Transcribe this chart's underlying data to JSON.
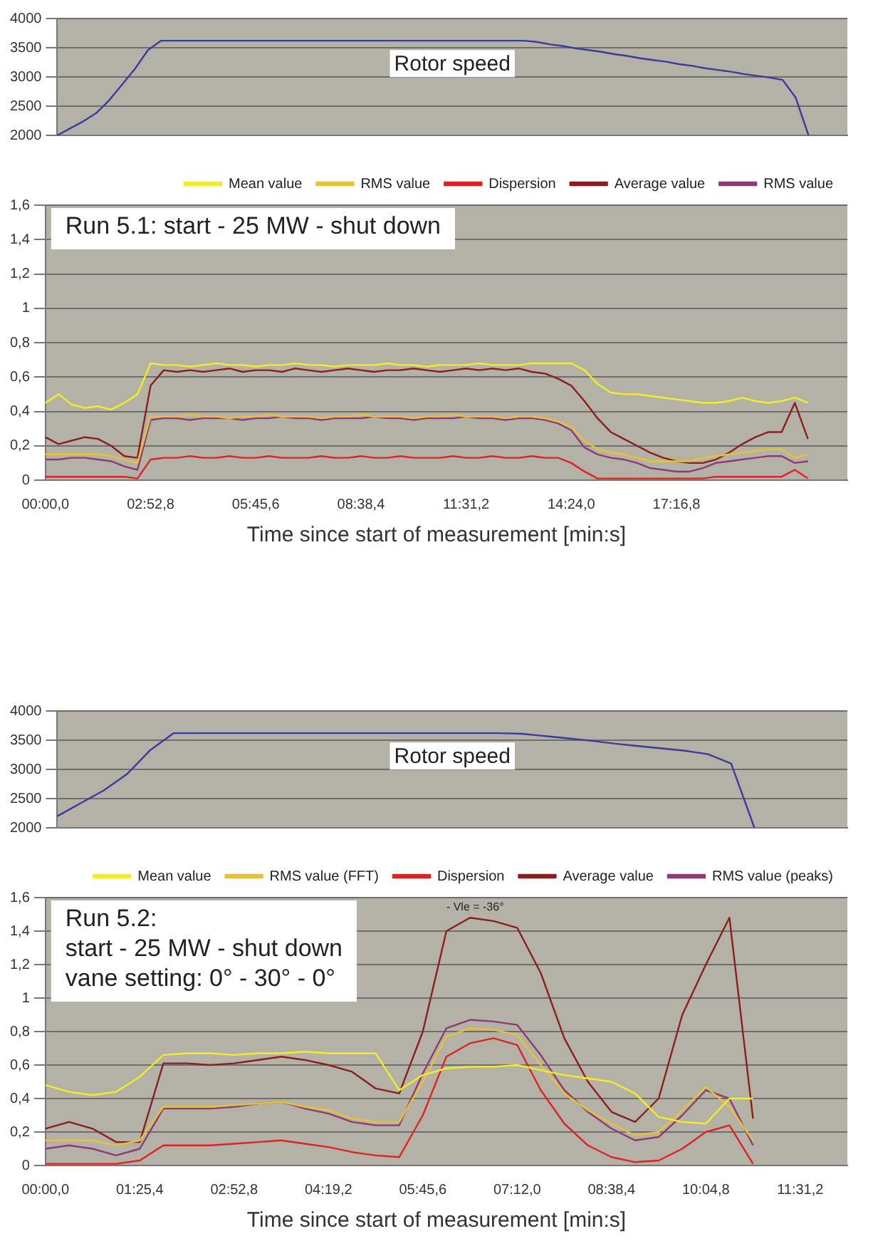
{
  "chart_data": [
    {
      "type": "line",
      "categories": [
        null,
        null,
        null,
        null,
        null,
        null,
        null,
        null,
        null,
        null,
        null,
        null,
        null,
        null,
        null,
        null,
        null,
        null,
        null,
        null,
        null,
        null,
        null,
        null,
        null,
        null,
        null,
        null,
        null,
        null,
        null,
        null,
        null,
        null,
        null,
        null,
        null,
        null,
        null,
        null,
        null,
        null,
        null,
        null,
        null,
        null,
        null,
        null,
        null,
        null,
        null,
        null,
        null,
        null,
        null,
        null,
        null,
        null,
        null,
        null,
        null,
        null
      ],
      "ylim": [
        2000,
        4000
      ],
      "yticks": [
        2000,
        2500,
        3000,
        3500,
        4000
      ],
      "grid": "y",
      "legend": false,
      "tick_labels": "y",
      "marker": "none",
      "line_style": "solid",
      "series": [
        {
          "name": "Rotor speed",
          "color": "#3b3b9e",
          "values": [
            2000,
            2120,
            2240,
            2380,
            2600,
            2870,
            3140,
            3460,
            3620,
            3620,
            3620,
            3620,
            3620,
            3620,
            3620,
            3620,
            3620,
            3620,
            3620,
            3620,
            3620,
            3620,
            3620,
            3620,
            3620,
            3620,
            3620,
            3620,
            3620,
            3620,
            3620,
            3620,
            3620,
            3620,
            3620,
            3620,
            3620,
            3600,
            3560,
            3530,
            3490,
            3460,
            3430,
            3390,
            3360,
            3320,
            3290,
            3260,
            3220,
            3190,
            3150,
            3120,
            3090,
            3050,
            3020,
            2990,
            2950,
            2650,
            2000,
            null,
            null,
            null
          ]
        }
      ]
    },
    {
      "type": "line",
      "title": "Run 5.1: start - 25 MW - shut down",
      "xlabel": "Time since  start of measurement [min:s]",
      "categories": [
        "00:00,0",
        null,
        null,
        null,
        null,
        null,
        null,
        null,
        "02:52,8",
        null,
        null,
        null,
        null,
        null,
        null,
        null,
        "05:45,6",
        null,
        null,
        null,
        null,
        null,
        null,
        null,
        "08:38,4",
        null,
        null,
        null,
        null,
        null,
        null,
        null,
        "11:31,2",
        null,
        null,
        null,
        null,
        null,
        null,
        null,
        "14:24,0",
        null,
        null,
        null,
        null,
        null,
        null,
        null,
        "17:16,8",
        null,
        null,
        null,
        null,
        null,
        null,
        null,
        null,
        null,
        null,
        null,
        null,
        null
      ],
      "ylim": [
        0,
        1.6
      ],
      "yticks": [
        0,
        {
          "value": 0.2,
          "label": "0,2"
        },
        {
          "value": 0.4,
          "label": "0,4"
        },
        {
          "value": 0.6,
          "label": "0,6"
        },
        {
          "value": 0.8,
          "label": "0,8"
        },
        1,
        {
          "value": 1.2,
          "label": "1,2"
        },
        {
          "value": 1.4,
          "label": "1,4"
        },
        {
          "value": 1.6,
          "label": "1,6"
        }
      ],
      "grid": "y",
      "legend": "top right",
      "marker": "none",
      "line_style": "solid",
      "series": [
        {
          "name": "Mean value",
          "color": "#f2ee22",
          "values": [
            0.45,
            0.5,
            0.44,
            0.42,
            0.43,
            0.41,
            0.45,
            0.5,
            0.68,
            0.67,
            0.67,
            0.66,
            0.67,
            0.68,
            0.67,
            0.67,
            0.66,
            0.67,
            0.67,
            0.68,
            0.67,
            0.67,
            0.66,
            0.67,
            0.67,
            0.67,
            0.68,
            0.67,
            0.67,
            0.66,
            0.67,
            0.67,
            0.67,
            0.68,
            0.67,
            0.67,
            0.67,
            0.68,
            0.68,
            0.68,
            0.68,
            0.64,
            0.56,
            0.51,
            0.5,
            0.5,
            0.49,
            0.48,
            0.47,
            0.46,
            0.45,
            0.45,
            0.46,
            0.48,
            0.46,
            0.45,
            0.46,
            0.48,
            0.45,
            null,
            null,
            null
          ]
        },
        {
          "name": "RMS value",
          "color": "#e8c232",
          "values": [
            0.15,
            0.15,
            0.15,
            0.15,
            0.15,
            0.14,
            0.12,
            0.1,
            0.37,
            0.37,
            0.37,
            0.38,
            0.37,
            0.37,
            0.36,
            0.37,
            0.37,
            0.38,
            0.37,
            0.37,
            0.37,
            0.36,
            0.37,
            0.37,
            0.38,
            0.37,
            0.37,
            0.37,
            0.36,
            0.37,
            0.37,
            0.38,
            0.37,
            0.37,
            0.37,
            0.36,
            0.37,
            0.37,
            0.36,
            0.34,
            0.31,
            0.23,
            0.18,
            0.16,
            0.15,
            0.13,
            0.11,
            0.11,
            0.11,
            0.11,
            0.13,
            0.14,
            0.15,
            0.16,
            0.17,
            0.18,
            0.18,
            0.13,
            0.15,
            null,
            null,
            null
          ]
        },
        {
          "name": "Dispersion",
          "color": "#e02222",
          "values": [
            0.02,
            0.02,
            0.02,
            0.02,
            0.02,
            0.02,
            0.02,
            0.01,
            0.12,
            0.13,
            0.13,
            0.14,
            0.13,
            0.13,
            0.14,
            0.13,
            0.13,
            0.14,
            0.13,
            0.13,
            0.13,
            0.14,
            0.13,
            0.13,
            0.14,
            0.13,
            0.13,
            0.14,
            0.13,
            0.13,
            0.13,
            0.14,
            0.13,
            0.13,
            0.14,
            0.13,
            0.13,
            0.14,
            0.13,
            0.13,
            0.1,
            0.05,
            0.01,
            0.01,
            0.01,
            0.01,
            0.01,
            0.01,
            0.01,
            0.01,
            0.01,
            0.02,
            0.02,
            0.02,
            0.02,
            0.02,
            0.02,
            0.06,
            0.01,
            null,
            null,
            null
          ]
        },
        {
          "name": "Average value",
          "color": "#8c1e1e",
          "values": [
            0.25,
            0.21,
            0.23,
            0.25,
            0.24,
            0.2,
            0.14,
            0.13,
            0.55,
            0.64,
            0.63,
            0.64,
            0.63,
            0.64,
            0.65,
            0.63,
            0.64,
            0.64,
            0.63,
            0.65,
            0.64,
            0.63,
            0.64,
            0.65,
            0.64,
            0.63,
            0.64,
            0.64,
            0.65,
            0.64,
            0.63,
            0.64,
            0.65,
            0.64,
            0.65,
            0.64,
            0.65,
            0.63,
            0.62,
            0.59,
            0.55,
            0.46,
            0.36,
            0.28,
            0.24,
            0.2,
            0.16,
            0.13,
            0.11,
            0.1,
            0.1,
            0.12,
            0.16,
            0.21,
            0.25,
            0.28,
            0.28,
            0.45,
            0.24,
            null,
            null,
            null
          ]
        },
        {
          "name": "RMS value",
          "color": "#8e3a78",
          "values": [
            0.12,
            0.12,
            0.13,
            0.13,
            0.12,
            0.11,
            0.08,
            0.06,
            0.35,
            0.36,
            0.36,
            0.35,
            0.36,
            0.36,
            0.36,
            0.35,
            0.36,
            0.36,
            0.37,
            0.36,
            0.36,
            0.35,
            0.36,
            0.36,
            0.36,
            0.37,
            0.36,
            0.36,
            0.35,
            0.36,
            0.36,
            0.36,
            0.37,
            0.36,
            0.36,
            0.35,
            0.36,
            0.36,
            0.35,
            0.33,
            0.29,
            0.19,
            0.15,
            0.13,
            0.12,
            0.1,
            0.07,
            0.06,
            0.05,
            0.05,
            0.07,
            0.1,
            0.11,
            0.12,
            0.13,
            0.14,
            0.14,
            0.1,
            0.11,
            null,
            null,
            null
          ]
        }
      ]
    },
    {
      "type": "line",
      "categories": [
        null,
        null,
        null,
        null,
        null,
        null,
        null,
        null,
        null,
        null,
        null,
        null,
        null,
        null,
        null,
        null,
        null,
        null,
        null,
        null,
        null,
        null,
        null,
        null,
        null,
        null,
        null,
        null,
        null,
        null,
        null,
        null,
        null,
        null,
        null
      ],
      "ylim": [
        2000,
        4000
      ],
      "yticks": [
        2000,
        2500,
        3000,
        3500,
        4000
      ],
      "grid": "y",
      "legend": false,
      "tick_labels": "y",
      "marker": "none",
      "line_style": "solid",
      "series": [
        {
          "name": "Rotor speed",
          "color": "#3b3b9e",
          "values": [
            2200,
            2420,
            2640,
            2920,
            3330,
            3620,
            3620,
            3620,
            3620,
            3620,
            3620,
            3620,
            3620,
            3620,
            3620,
            3620,
            3620,
            3620,
            3620,
            3620,
            3610,
            3570,
            3530,
            3490,
            3440,
            3400,
            3360,
            3320,
            3260,
            3100,
            2000,
            null,
            null,
            null,
            null
          ]
        }
      ]
    },
    {
      "type": "line",
      "title": "Run 5.2:\nstart - 25 MW - shut down\nvane setting: 0° - 30° - 0°",
      "xlabel": "Time since  start of measurement [min:s]",
      "annotations": [
        "- Vle = -36°"
      ],
      "categories": [
        "00:00,0",
        null,
        null,
        null,
        "01:25,4",
        null,
        null,
        null,
        "02:52,8",
        null,
        null,
        null,
        "04:19,2",
        null,
        null,
        null,
        "05:45,6",
        null,
        null,
        null,
        "07:12,0",
        null,
        null,
        null,
        "08:38,4",
        null,
        null,
        null,
        "10:04,8",
        null,
        null,
        null,
        "11:31,2",
        null,
        null
      ],
      "ylim": [
        0,
        1.6
      ],
      "yticks": [
        0,
        {
          "value": 0.2,
          "label": "0,2"
        },
        {
          "value": 0.4,
          "label": "0,4"
        },
        {
          "value": 0.6,
          "label": "0,6"
        },
        {
          "value": 0.8,
          "label": "0,8"
        },
        1,
        {
          "value": 1.2,
          "label": "1,2"
        },
        {
          "value": 1.4,
          "label": "1,4"
        },
        {
          "value": 1.6,
          "label": "1,6"
        }
      ],
      "grid": "y",
      "legend": "top right",
      "marker": "none",
      "line_style": "solid",
      "series": [
        {
          "name": "Mean value",
          "color": "#f2ee22",
          "values": [
            0.48,
            0.44,
            0.42,
            0.44,
            0.53,
            0.66,
            0.67,
            0.67,
            0.66,
            0.67,
            0.67,
            0.68,
            0.67,
            0.67,
            0.67,
            0.45,
            0.54,
            0.58,
            0.59,
            0.59,
            0.6,
            0.57,
            0.54,
            0.52,
            0.5,
            0.43,
            0.29,
            0.26,
            0.25,
            0.4,
            0.4,
            null,
            null,
            null,
            null
          ]
        },
        {
          "name": "RMS value (FFT)",
          "color": "#e8c232",
          "values": [
            0.15,
            0.15,
            0.15,
            0.12,
            0.15,
            0.35,
            0.35,
            0.35,
            0.36,
            0.37,
            0.38,
            0.35,
            0.33,
            0.28,
            0.26,
            0.26,
            0.5,
            0.77,
            0.82,
            0.81,
            0.78,
            0.6,
            0.43,
            0.33,
            0.25,
            0.18,
            0.2,
            0.33,
            0.47,
            0.35,
            0.15,
            null,
            null,
            null,
            null
          ]
        },
        {
          "name": "Dispersion",
          "color": "#e02222",
          "values": [
            0.01,
            0.01,
            0.01,
            0.01,
            0.03,
            0.12,
            0.12,
            0.12,
            0.13,
            0.14,
            0.15,
            0.13,
            0.11,
            0.08,
            0.06,
            0.05,
            0.3,
            0.65,
            0.73,
            0.76,
            0.72,
            0.45,
            0.25,
            0.12,
            0.05,
            0.02,
            0.03,
            0.1,
            0.2,
            0.24,
            0.01,
            null,
            null,
            null,
            null
          ]
        },
        {
          "name": "Average value",
          "color": "#8c1e1e",
          "values": [
            0.22,
            0.26,
            0.22,
            0.14,
            0.14,
            0.61,
            0.61,
            0.6,
            0.61,
            0.63,
            0.65,
            0.63,
            0.6,
            0.56,
            0.46,
            0.43,
            0.8,
            1.4,
            1.48,
            1.46,
            1.42,
            1.15,
            0.76,
            0.5,
            0.32,
            0.26,
            0.4,
            0.9,
            1.2,
            1.48,
            0.28,
            null,
            null,
            null,
            null
          ]
        },
        {
          "name": "RMS value (peaks)",
          "color": "#8e3a78",
          "values": [
            0.1,
            0.12,
            0.1,
            0.06,
            0.1,
            0.34,
            0.34,
            0.34,
            0.35,
            0.37,
            0.38,
            0.34,
            0.31,
            0.26,
            0.24,
            0.24,
            0.55,
            0.82,
            0.87,
            0.86,
            0.84,
            0.66,
            0.45,
            0.32,
            0.22,
            0.15,
            0.17,
            0.3,
            0.45,
            0.4,
            0.12,
            null,
            null,
            null,
            null
          ]
        }
      ]
    }
  ]
}
